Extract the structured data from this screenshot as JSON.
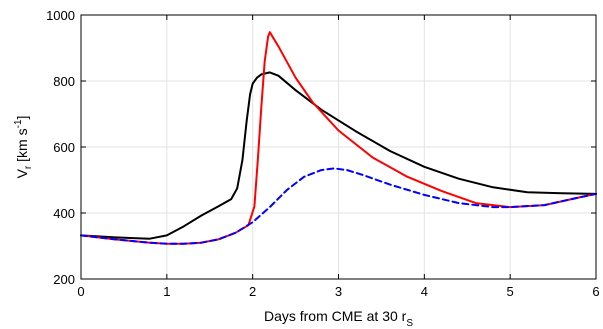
{
  "chart_data": {
    "type": "line",
    "title": "",
    "xlabel": {
      "main": "Days from CME at 30 r",
      "sub": "S"
    },
    "ylabel": {
      "v": "V",
      "r": "r",
      "bracket_open": " [km s",
      "exp": "-1",
      "bracket_close": "]"
    },
    "xlim": [
      0,
      6
    ],
    "ylim": [
      200,
      1000
    ],
    "xticks": [
      0,
      1,
      2,
      3,
      4,
      5,
      6
    ],
    "yticks": [
      200,
      400,
      600,
      800,
      1000
    ],
    "grid": true,
    "legend": "none",
    "series": [
      {
        "color": "#000000",
        "style": "solid",
        "x": [
          0,
          0.4,
          0.8,
          1.0,
          1.2,
          1.4,
          1.6,
          1.75,
          1.82,
          1.88,
          1.93,
          1.97,
          2.0,
          2.05,
          2.1,
          2.2,
          2.3,
          2.5,
          2.8,
          3.2,
          3.6,
          4.0,
          4.4,
          4.8,
          5.2,
          5.6,
          6.0
        ],
        "y": [
          332,
          326,
          322,
          332,
          360,
          392,
          420,
          442,
          475,
          560,
          680,
          760,
          792,
          810,
          820,
          826,
          816,
          772,
          713,
          648,
          588,
          540,
          504,
          478,
          463,
          460,
          458
        ]
      },
      {
        "color": "#ff0000",
        "style": "solid",
        "x": [
          0,
          0.4,
          0.8,
          1.0,
          1.2,
          1.4,
          1.6,
          1.8,
          1.95,
          2.02,
          2.06,
          2.1,
          2.14,
          2.18,
          2.2,
          2.3,
          2.5,
          2.7,
          3.0,
          3.4,
          3.8,
          4.2,
          4.6,
          5.0,
          5.4,
          5.8,
          6.0
        ],
        "y": [
          332,
          320,
          310,
          307,
          307,
          310,
          320,
          340,
          363,
          420,
          560,
          720,
          860,
          935,
          948,
          905,
          810,
          735,
          650,
          568,
          510,
          467,
          430,
          418,
          424,
          447,
          458
        ]
      },
      {
        "color": "#0000ff",
        "style": "dashed",
        "x": [
          0,
          0.4,
          0.8,
          1.0,
          1.2,
          1.4,
          1.6,
          1.8,
          2.0,
          2.2,
          2.4,
          2.6,
          2.8,
          2.95,
          3.1,
          3.3,
          3.6,
          4.0,
          4.4,
          4.8,
          5.0,
          5.4,
          5.8,
          6.0
        ],
        "y": [
          332,
          320,
          310,
          307,
          307,
          310,
          320,
          340,
          372,
          418,
          470,
          510,
          530,
          535,
          530,
          514,
          486,
          455,
          430,
          418,
          418,
          424,
          447,
          458
        ]
      }
    ]
  }
}
